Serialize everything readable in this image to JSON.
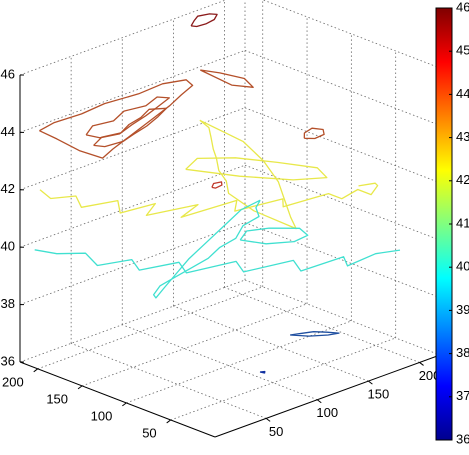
{
  "chart_data": {
    "type": "contour3",
    "xlim": [
      0,
      220
    ],
    "xticks": [
      50,
      100,
      150,
      200
    ],
    "ylim": [
      0,
      220
    ],
    "yticks": [
      50,
      100,
      150,
      200
    ],
    "zlim": [
      36,
      46
    ],
    "zticks": [
      36,
      38,
      40,
      42,
      44,
      46
    ],
    "grid": true,
    "clim": [
      36,
      46
    ],
    "cticks": [
      36,
      37,
      38,
      39,
      40,
      41,
      42,
      43,
      44,
      45,
      46
    ],
    "colormap": [
      "#00008f",
      "#0000ff",
      "#0080ff",
      "#00ffff",
      "#80ff80",
      "#ffff00",
      "#ff8000",
      "#ff0000",
      "#800000"
    ],
    "series": [
      {
        "level": 46,
        "color": "#8b1a1a",
        "x": [
          150,
          158,
          166,
          175,
          178,
          170,
          160,
          152,
          150
        ],
        "y": [
          200,
          206,
          211,
          208,
          203,
          197,
          195,
          196,
          200
        ]
      },
      {
        "level": 44,
        "color": "#b4502a",
        "x": [
          12,
          30,
          55,
          80,
          110,
          135,
          152,
          148,
          130,
          110,
          90,
          70,
          45,
          25,
          8,
          6,
          10,
          12
        ],
        "y": [
          212,
          216,
          214,
          217,
          213,
          215,
          208,
          196,
          188,
          178,
          170,
          162,
          152,
          144,
          136,
          160,
          190,
          212
        ]
      },
      {
        "level": 44,
        "color": "#b4502a",
        "x": [
          30,
          45,
          62,
          80,
          98,
          115,
          120,
          100,
          85,
          66,
          48,
          33,
          30
        ],
        "y": [
          180,
          190,
          186,
          195,
          191,
          198,
          190,
          182,
          176,
          170,
          163,
          168,
          180
        ]
      },
      {
        "level": 44,
        "color": "#b4502a",
        "x": [
          20,
          35,
          50,
          65,
          80,
          95,
          105,
          90,
          72,
          55,
          40,
          24,
          20
        ],
        "y": [
          160,
          168,
          164,
          172,
          176,
          184,
          176,
          168,
          160,
          155,
          150,
          152,
          160
        ]
      },
      {
        "level": 44,
        "color": "#b4502a",
        "x": [
          172,
          178,
          183,
          176,
          168,
          172
        ],
        "y": [
          215,
          200,
          178,
          160,
          175,
          215
        ]
      },
      {
        "level": 44,
        "color": "#b4502a",
        "x": [
          135,
          142,
          152,
          156,
          150,
          140,
          135
        ],
        "y": [
          55,
          63,
          66,
          58,
          50,
          49,
          55
        ]
      },
      {
        "level": 43,
        "color": "#c0392b",
        "x": [
          62,
          68,
          74,
          70,
          63,
          62
        ],
        "y": [
          75,
          80,
          78,
          73,
          72,
          75
        ]
      },
      {
        "level": 42,
        "color": "#e8e84a",
        "x": [
          10,
          4,
          20,
          8,
          35,
          20,
          50,
          30,
          70,
          45,
          95,
          80,
          120,
          110,
          150,
          150,
          170,
          170,
          185,
          187,
          175
        ],
        "y": [
          209,
          190,
          180,
          160,
          150,
          130,
          125,
          112,
          100,
          90,
          85,
          70,
          62,
          50,
          45,
          30,
          35,
          20,
          30,
          35,
          40
        ]
      },
      {
        "level": 42,
        "color": "#e8e84a",
        "x": [
          181,
          176,
          165,
          150,
          140,
          125,
          115,
          100,
          90,
          88,
          100,
          120,
          140,
          160,
          175,
          181
        ],
        "y": [
          226,
          210,
          195,
          175,
          160,
          140,
          120,
          100,
          60,
          10,
          30,
          60,
          90,
          130,
          170,
          226
        ]
      },
      {
        "level": 42,
        "color": "#e8e84a",
        "x": [
          110,
          130,
          150,
          165,
          178,
          170,
          150,
          128,
          110
        ],
        "y": [
          160,
          170,
          150,
          120,
          90,
          70,
          85,
          120,
          160
        ]
      },
      {
        "level": 40,
        "color": "#40e0d0",
        "x": [
          4,
          10,
          25,
          15,
          40,
          30,
          60,
          50,
          90,
          80,
          120,
          110,
          150,
          140,
          170,
          187
        ],
        "y": [
          208,
          190,
          175,
          150,
          140,
          120,
          110,
          90,
          80,
          60,
          50,
          30,
          28,
          12,
          15,
          7
        ]
      },
      {
        "level": 40,
        "color": "#40e0d0",
        "x": [
          182,
          170,
          160,
          140,
          120,
          100,
          80,
          60,
          40,
          20,
          5,
          2,
          20,
          45,
          70,
          100,
          130,
          160,
          182
        ],
        "y": [
          159,
          150,
          135,
          130,
          115,
          110,
          100,
          95,
          90,
          85,
          75,
          69,
          80,
          95,
          110,
          125,
          140,
          155,
          159
        ]
      },
      {
        "level": 40,
        "color": "#40e0d0",
        "x": [
          120,
          135,
          150,
          165,
          160,
          145,
          128,
          120
        ],
        "y": [
          110,
          120,
          112,
          95,
          80,
          78,
          90,
          110
        ]
      },
      {
        "level": 38,
        "color": "#1f4fa0",
        "x": [
          96,
          104,
          112,
          118,
          123,
          115,
          104,
          96
        ],
        "y": [
          26,
          22,
          18,
          10,
          2,
          5,
          14,
          26
        ]
      },
      {
        "level": 37,
        "color": "#1030a0",
        "x": [
          70,
          73,
          71,
          70
        ],
        "y": [
          30,
          28,
          26,
          30
        ]
      }
    ]
  }
}
